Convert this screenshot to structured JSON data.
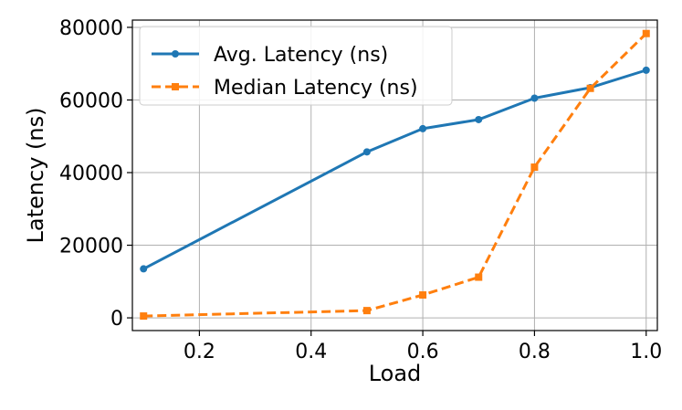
{
  "chart_data": {
    "type": "line",
    "title": "",
    "xlabel": "Load",
    "ylabel": "Latency (ns)",
    "xlim": [
      0.08,
      1.02
    ],
    "ylim": [
      -3500,
      82000
    ],
    "xticks": [
      0.2,
      0.4,
      0.6,
      0.8,
      1.0
    ],
    "xtick_labels": [
      "0.2",
      "0.4",
      "0.6",
      "0.8",
      "1.0"
    ],
    "yticks": [
      0,
      20000,
      40000,
      60000,
      80000
    ],
    "ytick_labels": [
      "0",
      "20000",
      "40000",
      "60000",
      "80000"
    ],
    "grid": true,
    "legend_position": "upper-left",
    "x": [
      0.1,
      0.5,
      0.6,
      0.7,
      0.8,
      0.9,
      1.0
    ],
    "series": [
      {
        "name": "Avg. Latency (ns)",
        "color": "#1f77b4",
        "line_style": "solid",
        "marker": "circle",
        "values": [
          13500,
          45700,
          52100,
          54600,
          60500,
          63400,
          68200
        ]
      },
      {
        "name": "Median Latency (ns)",
        "color": "#ff7f0e",
        "line_style": "dashed",
        "marker": "square",
        "values": [
          500,
          2000,
          6300,
          11200,
          41500,
          63200,
          78300
        ]
      }
    ]
  }
}
